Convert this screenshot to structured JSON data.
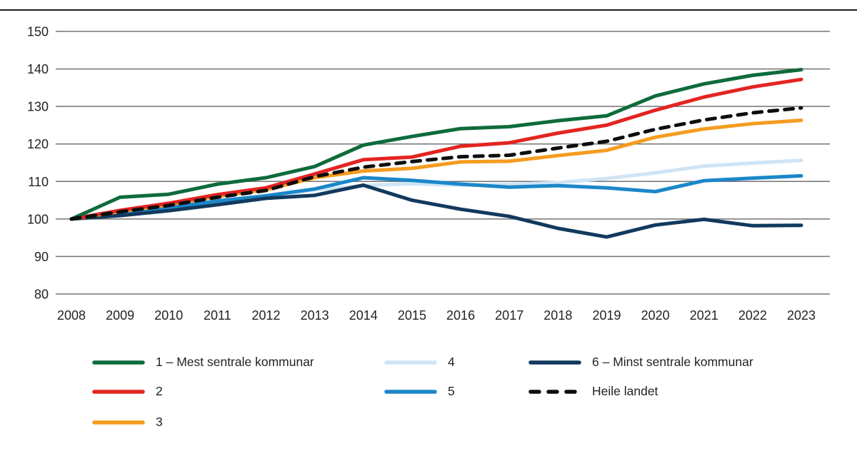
{
  "figure": {
    "top_rule_color": "#1a1a1a",
    "background": "#ffffff",
    "text_color": "#232323",
    "grid_color": "#737373"
  },
  "chart_data": {
    "type": "line",
    "title": "",
    "xlabel": "",
    "ylabel": "",
    "x": [
      2008,
      2009,
      2010,
      2011,
      2012,
      2013,
      2014,
      2015,
      2016,
      2017,
      2018,
      2019,
      2020,
      2021,
      2022,
      2023
    ],
    "y_ticks": [
      80,
      90,
      100,
      110,
      120,
      130,
      140,
      150
    ],
    "ylim": [
      80,
      150
    ],
    "grid": "horizontal",
    "legend_position": "bottom",
    "line_width": 5,
    "z_order": [
      3,
      4,
      5,
      2,
      1,
      0,
      6
    ],
    "series": [
      {
        "name": "1 – Mest sentrale kommunar",
        "color": "#0e6b3b",
        "dash": false,
        "values": [
          100,
          105.8,
          106.6,
          109.3,
          111.0,
          114.0,
          119.7,
          122.0,
          124.1,
          124.6,
          126.2,
          127.5,
          132.8,
          136.0,
          138.3,
          139.8
        ]
      },
      {
        "name": "2",
        "color": "#e32421",
        "dash": false,
        "values": [
          100,
          102.3,
          104.2,
          106.5,
          108.3,
          112.0,
          115.8,
          116.5,
          119.4,
          120.3,
          122.9,
          125.0,
          129.0,
          132.5,
          135.2,
          137.2
        ]
      },
      {
        "name": "3",
        "color": "#f59c20",
        "dash": false,
        "values": [
          100,
          102.0,
          103.8,
          106.0,
          107.8,
          111.0,
          112.8,
          113.5,
          115.2,
          115.4,
          116.9,
          118.3,
          121.8,
          124.0,
          125.4,
          126.3
        ]
      },
      {
        "name": "4",
        "color": "#cfe5f6",
        "dash": false,
        "values": [
          100,
          101.3,
          102.8,
          104.5,
          105.7,
          107.8,
          108.9,
          109.4,
          109.0,
          109.2,
          109.7,
          110.8,
          112.3,
          114.1,
          114.9,
          115.6
        ]
      },
      {
        "name": "5",
        "color": "#1b87c9",
        "dash": false,
        "values": [
          100,
          101.5,
          103.0,
          104.8,
          106.2,
          108.0,
          111.0,
          110.3,
          109.3,
          108.5,
          108.9,
          108.3,
          107.3,
          110.2,
          110.9,
          111.5
        ]
      },
      {
        "name": "6 – Minst sentrale kommunar",
        "color": "#12395e",
        "dash": false,
        "values": [
          100,
          100.9,
          102.2,
          103.8,
          105.5,
          106.3,
          109.0,
          105.0,
          102.6,
          100.7,
          97.5,
          95.2,
          98.4,
          99.9,
          98.2,
          98.3
        ]
      },
      {
        "name": "Heile landet",
        "color": "#0d0d0d",
        "dash": true,
        "values": [
          100,
          101.9,
          103.6,
          105.8,
          107.6,
          111.3,
          113.8,
          115.3,
          116.6,
          117.0,
          118.9,
          120.7,
          123.9,
          126.4,
          128.3,
          129.6
        ]
      }
    ]
  }
}
